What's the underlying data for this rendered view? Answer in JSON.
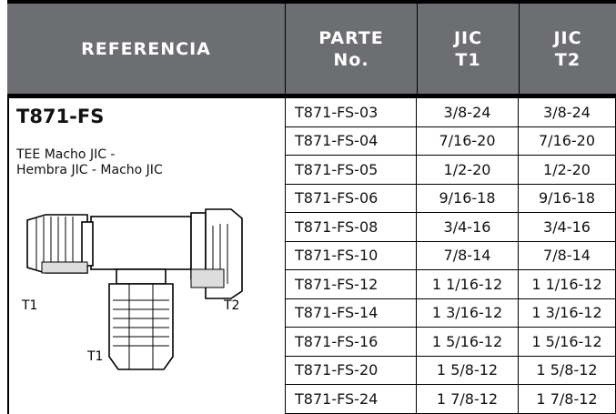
{
  "header": {
    "columns": [
      {
        "lines": [
          "REFERENCIA"
        ]
      },
      {
        "lines": [
          "PARTE",
          "No."
        ]
      },
      {
        "lines": [
          "JIC",
          "T1"
        ]
      },
      {
        "lines": [
          "JIC",
          "T2"
        ]
      }
    ]
  },
  "product": {
    "title": "T871-FS",
    "description": [
      "TEE Macho JIC -",
      "Hembra JIC - Macho JIC"
    ],
    "drawing_labels": [
      "T1",
      "T2",
      "T1"
    ]
  },
  "table": {
    "rows": [
      [
        "T871-FS-03",
        "3/8-24",
        "3/8-24"
      ],
      [
        "T871-FS-04",
        "7/16-20",
        "7/16-20"
      ],
      [
        "T871-FS-05",
        "1/2-20",
        "1/2-20"
      ],
      [
        "T871-FS-06",
        "9/16-18",
        "9/16-18"
      ],
      [
        "T871-FS-08",
        "3/4-16",
        "3/4-16"
      ],
      [
        "T871-FS-10",
        "7/8-14",
        "7/8-14"
      ],
      [
        "T871-FS-12",
        "1 1/16-12",
        "1 1/16-12"
      ],
      [
        "T871-FS-14",
        "1 3/16-12",
        "1 3/16-12"
      ],
      [
        "T871-FS-16",
        "1 5/16-12",
        "1 5/16-12"
      ],
      [
        "T871-FS-20",
        "1 5/8-12",
        "1 5/8-12"
      ],
      [
        "T871-FS-24",
        "1 7/8-12",
        "1 7/8-12"
      ]
    ]
  }
}
